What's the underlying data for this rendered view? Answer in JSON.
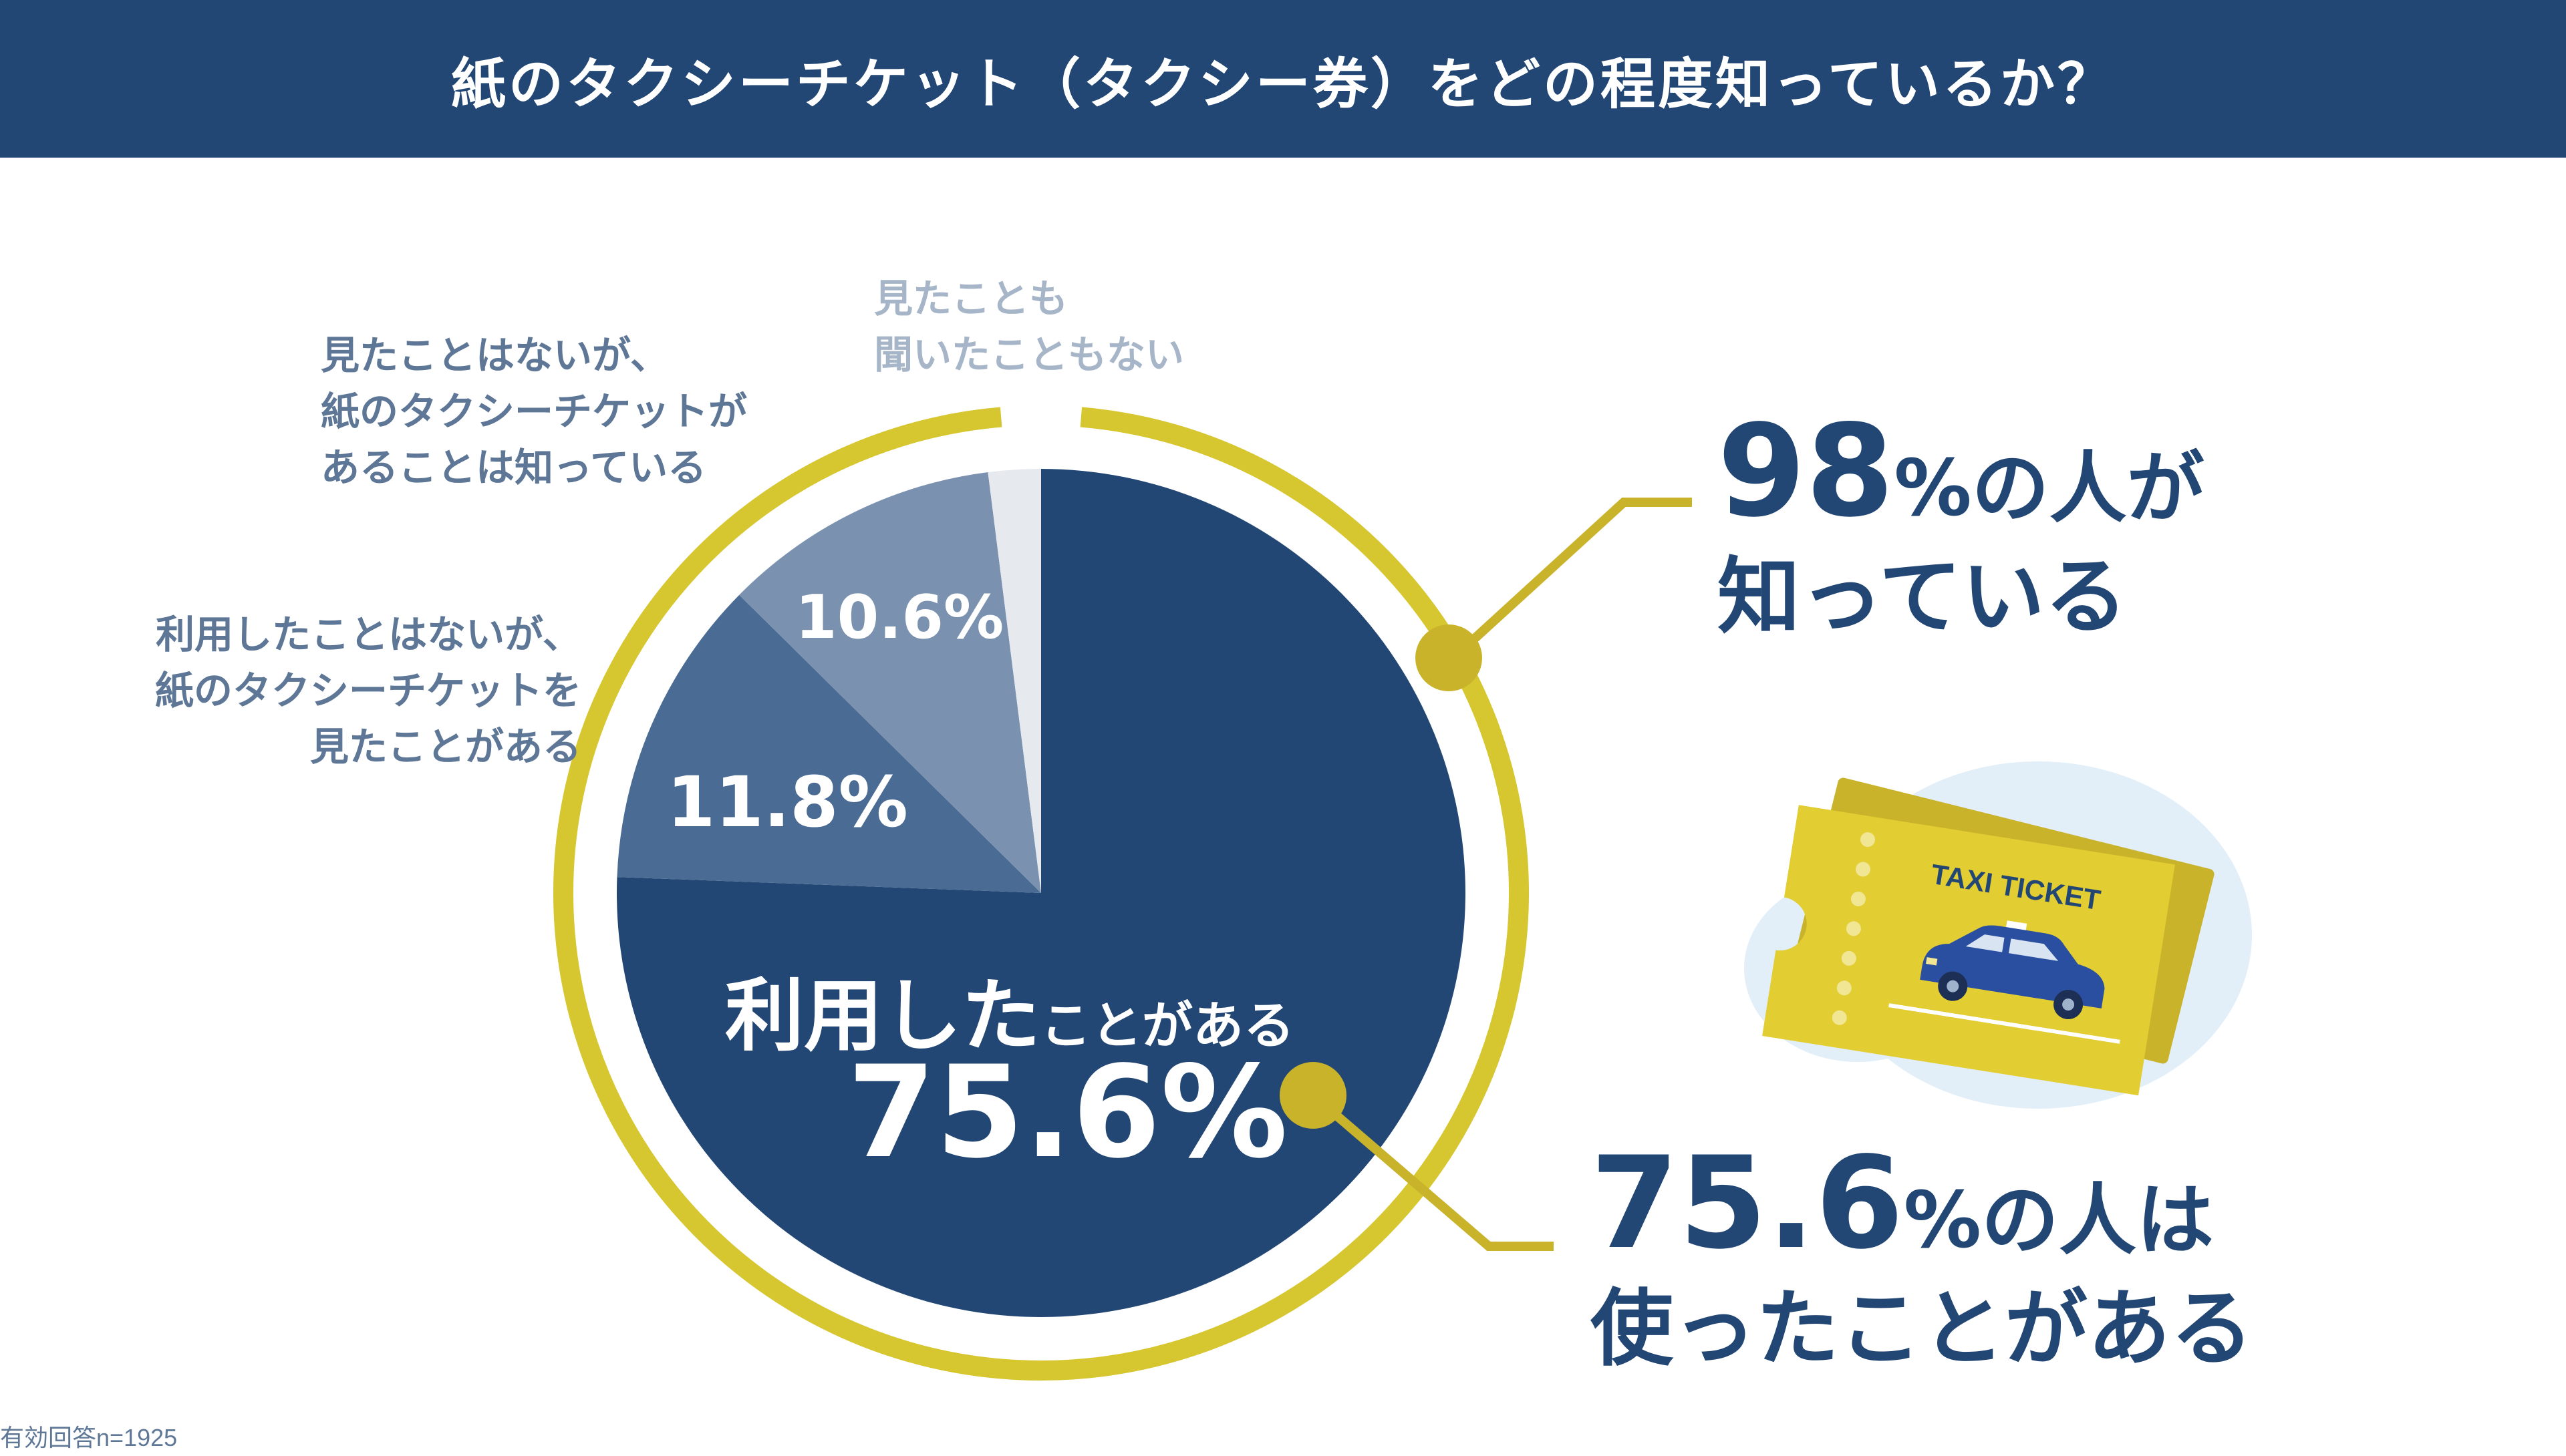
{
  "title": "紙のタクシーチケット（タクシー券）をどの程度知っているか？",
  "note": "有効回答n=1925",
  "chart_data": {
    "type": "pie",
    "title": "紙のタクシーチケット（タクシー券）をどの程度知っているか？",
    "slices": [
      {
        "label": "利用したことがある",
        "value": 75.6,
        "display": "75.6%",
        "color": "#234774"
      },
      {
        "label": "利用したことはないが、紙のタクシーチケットを見たことがある",
        "value": 11.8,
        "display": "11.8%",
        "color": "#4a6b93"
      },
      {
        "label": "見たことはないが、紙のタクシーチケットがあることは知っている",
        "value": 10.6,
        "display": "10.6%",
        "color": "#7a92b0"
      },
      {
        "label": "見たことも聞いたこともない",
        "value": 2.0,
        "color": "#e6e9ee"
      }
    ],
    "ring_label_color": "#d6c62f"
  },
  "labels": {
    "seg1_big": "利用した",
    "seg1_small": "ことがある",
    "seg1_pct": "75.6%",
    "seg2_lines": [
      "利用したことはないが、",
      "紙のタクシーチケットを",
      "見たことがある"
    ],
    "seg2_pct": "11.8%",
    "seg3_lines": [
      "見たことはないが、",
      "紙のタクシーチケットが",
      "あることは知っている"
    ],
    "seg3_pct": "10.6%",
    "seg4_lines": [
      "見たことも",
      "聞いたこともない"
    ]
  },
  "callouts": {
    "top": {
      "num": "98",
      "rest": "%の人が",
      "line2": "知っている"
    },
    "bottom": {
      "num": "75.6",
      "rest": "%の人は",
      "line2": "使ったことがある"
    }
  },
  "ticket": {
    "text": "TAXI TICKET"
  }
}
